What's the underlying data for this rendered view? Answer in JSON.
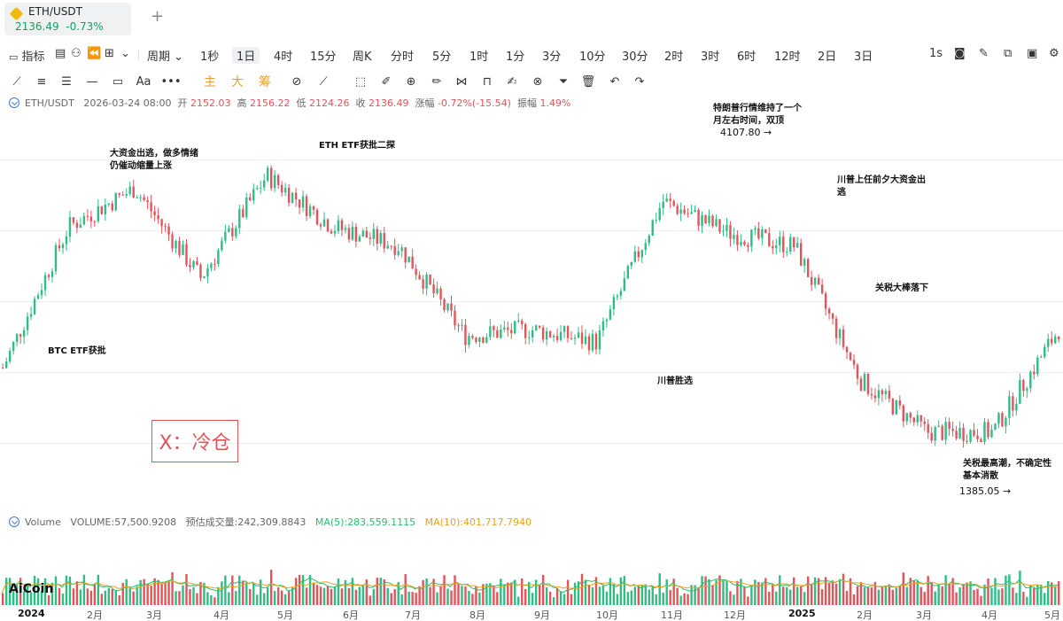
{
  "tab": {
    "symbol": "ETH/USDT",
    "price": "2136.49",
    "change": "-0.73%",
    "add_icon": "+"
  },
  "toolbar1": {
    "indicator_label": "指标",
    "period_label": "周期",
    "intervals": [
      "1秒",
      "1日",
      "4时",
      "15分",
      "周K",
      "分时",
      "5分",
      "1时",
      "1分",
      "3分",
      "10分",
      "30分",
      "2时",
      "3时",
      "6时",
      "12时",
      "2日",
      "3日"
    ],
    "selected_interval": "1日",
    "right_label": "1s"
  },
  "toolbar2": {
    "zhu": "主",
    "da": "大",
    "chou": "筹"
  },
  "info": {
    "pair": "ETH/USDT",
    "time": "2026-03-24 08:00",
    "open_label": "开",
    "open": "2152.03",
    "high_label": "高",
    "high": "2156.22",
    "low_label": "低",
    "low": "2124.26",
    "close_label": "收",
    "close": "2136.49",
    "chg_label": "涨幅",
    "chg": "-0.72%(-15.54)",
    "amp_label": "振幅",
    "amp": "1.49%"
  },
  "volume_info": {
    "label": "Volume",
    "volume": "VOLUME:57,500.9208",
    "est": "预估成交量:242,309.8843",
    "ma5": "MA(5):283,559.1115",
    "ma10": "MA(10):401,717.7940"
  },
  "annotations": {
    "btc_etf": "BTC ETF获批",
    "big_fund_1": "大资金出逃，做多情绪",
    "big_fund_2": "仍催动缩量上涨",
    "eth_etf": "ETH ETF获批二探",
    "trump_win": "川普胜选",
    "trump_trade_1": "特朗普行情维持了一个",
    "trump_trade_2": "月左右时间，双顶",
    "trump_trade_price": "4107.80 →",
    "inaug_1": "川普上任前夕大资金出",
    "inaug_2": "逃",
    "tariff_drop": "关税大棒落下",
    "tariff_peak_1": "关税最高潮，不确定性",
    "tariff_peak_2": "基本消散",
    "low_price": "1385.05 →"
  },
  "x_box": "X：冷仓",
  "logo": "AiCoin",
  "xaxis": [
    "2024",
    "2月",
    "3月",
    "4月",
    "5月",
    "6月",
    "7月",
    "8月",
    "9月",
    "10月",
    "11月",
    "12月",
    "2025",
    "2月",
    "3月",
    "4月",
    "5月"
  ],
  "colors": {
    "up": "#2dbd85",
    "down": "#e5535a",
    "ma5": "#2dbd6a",
    "ma10": "#f0a020"
  },
  "chart_data": {
    "type": "candlestick",
    "title": "ETH/USDT",
    "interval": "1日",
    "x_range": [
      "2024-01",
      "2025-05"
    ],
    "ylim": [
      1300,
      4200
    ],
    "high_marker": 4107.8,
    "low_marker": 1385.05,
    "monthly_path": [
      {
        "date": "2024-01",
        "close": 2300
      },
      {
        "date": "2024-02",
        "close": 3400
      },
      {
        "date": "2024-03",
        "close": 3700
      },
      {
        "date": "2024-04",
        "close": 3000
      },
      {
        "date": "2024-05",
        "close": 3800
      },
      {
        "date": "2024-06",
        "close": 3400
      },
      {
        "date": "2024-07",
        "close": 3250
      },
      {
        "date": "2024-08",
        "close": 2550
      },
      {
        "date": "2024-09",
        "close": 2600
      },
      {
        "date": "2024-10",
        "close": 2500
      },
      {
        "date": "2024-11",
        "close": 3600
      },
      {
        "date": "2024-12",
        "close": 3350
      },
      {
        "date": "2025-01",
        "close": 3250
      },
      {
        "date": "2025-02",
        "close": 2200
      },
      {
        "date": "2025-03",
        "close": 1800
      },
      {
        "date": "2025-04",
        "close": 1800
      },
      {
        "date": "2025-05",
        "close": 2600
      }
    ]
  }
}
